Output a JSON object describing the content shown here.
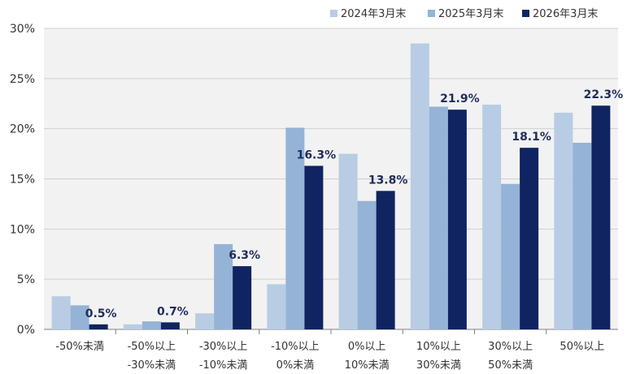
{
  "chart_data": {
    "type": "bar",
    "title": "",
    "xlabel": "",
    "ylabel": "",
    "ylim": [
      0,
      30
    ],
    "yticks": [
      "0%",
      "5%",
      "10%",
      "15%",
      "20%",
      "25%",
      "30%"
    ],
    "ytick_values": [
      0,
      5,
      10,
      15,
      20,
      25,
      30
    ],
    "grid": true,
    "legend_position": "top-right",
    "categories": [
      [
        "-50%未満"
      ],
      [
        "-50%以上",
        "-30%未満"
      ],
      [
        "-30%以上",
        "-10%未満"
      ],
      [
        "-10%以上",
        "0%未満"
      ],
      [
        "0%以上",
        "10%未満"
      ],
      [
        "10%以上",
        "30%未満"
      ],
      [
        "30%以上",
        "50%未満"
      ],
      [
        "50%以上"
      ]
    ],
    "series": [
      {
        "name": "2024年3月末",
        "color": "#b8cce4",
        "values": [
          3.3,
          0.5,
          1.6,
          4.5,
          17.5,
          28.5,
          22.4,
          21.6
        ]
      },
      {
        "name": "2025年3月末",
        "color": "#95b3d7",
        "values": [
          2.4,
          0.8,
          8.5,
          20.1,
          12.8,
          22.2,
          14.5,
          18.6
        ]
      },
      {
        "name": "2026年3月末",
        "color": "#0f2460",
        "values": [
          0.5,
          0.7,
          6.3,
          16.3,
          13.8,
          21.9,
          18.1,
          22.3
        ],
        "data_labels": [
          "0.5%",
          "0.7%",
          "6.3%",
          "16.3%",
          "13.8%",
          "21.9%",
          "18.1%",
          "22.3%"
        ]
      }
    ]
  }
}
